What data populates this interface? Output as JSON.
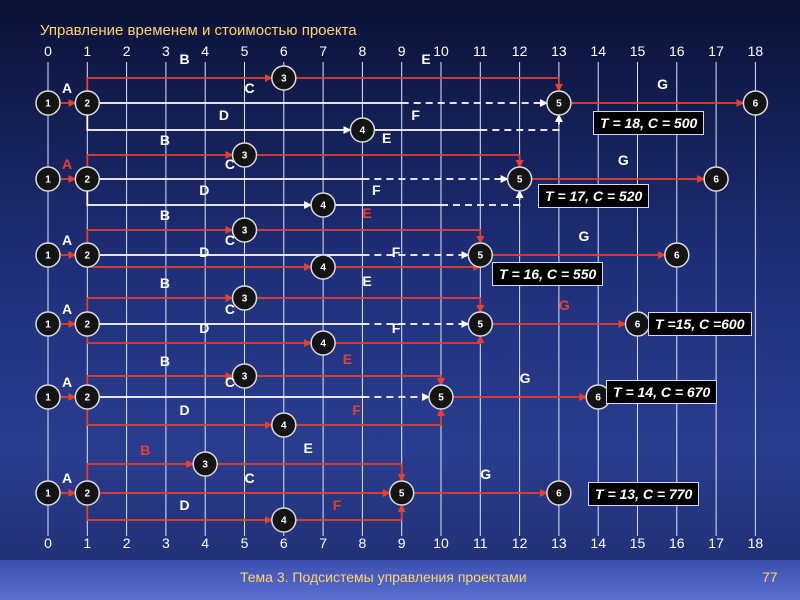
{
  "title": "Управление временем и стоимостью проекта",
  "footer": {
    "text": "Тема 3. Подсистемы управления проектами",
    "page": "77"
  },
  "axis_ticks": [
    "0",
    "1",
    "2",
    "3",
    "4",
    "5",
    "6",
    "7",
    "8",
    "9",
    "10",
    "11",
    "12",
    "13",
    "14",
    "15",
    "16",
    "17",
    "18"
  ],
  "colors": {
    "red": "#e8402a",
    "white": "#ffffff",
    "label": "#ffffff",
    "label_red": "#e8402a",
    "node": "#141414"
  },
  "nodes": [
    "1",
    "2",
    "3",
    "4",
    "5",
    "6"
  ],
  "activities": [
    "A",
    "B",
    "C",
    "D",
    "E",
    "F",
    "G"
  ],
  "networks": [
    {
      "result": "T = 18,   C = 500",
      "node_times": {
        "1": 0,
        "2": 1,
        "3": 6,
        "4": 8,
        "5": 13,
        "6": 18
      },
      "activities": [
        {
          "id": "A",
          "from": "1",
          "to": "2",
          "start": 0,
          "end": 1,
          "color": "red",
          "label_color": "white"
        },
        {
          "id": "B",
          "from": "2",
          "to": "3",
          "start": 1,
          "end": 6,
          "color": "red",
          "label_color": "white"
        },
        {
          "id": "C",
          "from": "2",
          "to": "5",
          "start": 1,
          "end": 9,
          "color": "white",
          "label_color": "white"
        },
        {
          "id": "D",
          "from": "2",
          "to": "4",
          "start": 1,
          "end": 8,
          "color": "white",
          "label_color": "white"
        },
        {
          "id": "E",
          "from": "3",
          "to": "5",
          "start": 6,
          "end": 13,
          "color": "red",
          "label_color": "white"
        },
        {
          "id": "F",
          "from": "4",
          "to": "5",
          "start": 8,
          "end": 11,
          "color": "white",
          "label_color": "white"
        },
        {
          "id": "G",
          "from": "5",
          "to": "6",
          "start": 13,
          "end": 18,
          "color": "red",
          "label_color": "white"
        }
      ]
    },
    {
      "result": "T = 17,   C = 520",
      "node_times": {
        "1": 0,
        "2": 1,
        "3": 5,
        "4": 7,
        "5": 12,
        "6": 17
      },
      "activities": [
        {
          "id": "A",
          "from": "1",
          "to": "2",
          "start": 0,
          "end": 1,
          "color": "red",
          "label_color": "red"
        },
        {
          "id": "B",
          "from": "2",
          "to": "3",
          "start": 1,
          "end": 5,
          "color": "red",
          "label_color": "white"
        },
        {
          "id": "C",
          "from": "2",
          "to": "5",
          "start": 1,
          "end": 8,
          "color": "white",
          "label_color": "white"
        },
        {
          "id": "D",
          "from": "2",
          "to": "4",
          "start": 1,
          "end": 7,
          "color": "white",
          "label_color": "white"
        },
        {
          "id": "E",
          "from": "3",
          "to": "5",
          "start": 5,
          "end": 12,
          "color": "red",
          "label_color": "white"
        },
        {
          "id": "F",
          "from": "4",
          "to": "5",
          "start": 7,
          "end": 10,
          "color": "white",
          "label_color": "white"
        },
        {
          "id": "G",
          "from": "5",
          "to": "6",
          "start": 12,
          "end": 17,
          "color": "red",
          "label_color": "white"
        }
      ]
    },
    {
      "result": "T = 16,   C = 550",
      "node_times": {
        "1": 0,
        "2": 1,
        "3": 5,
        "4": 7,
        "5": 11,
        "6": 16
      },
      "activities": [
        {
          "id": "A",
          "from": "1",
          "to": "2",
          "start": 0,
          "end": 1,
          "color": "red",
          "label_color": "white"
        },
        {
          "id": "B",
          "from": "2",
          "to": "3",
          "start": 1,
          "end": 5,
          "color": "red",
          "label_color": "white"
        },
        {
          "id": "C",
          "from": "2",
          "to": "5",
          "start": 1,
          "end": 8,
          "color": "white",
          "label_color": "white"
        },
        {
          "id": "D",
          "from": "2",
          "to": "4",
          "start": 1,
          "end": 7,
          "color": "red",
          "label_color": "white"
        },
        {
          "id": "E",
          "from": "3",
          "to": "5",
          "start": 5,
          "end": 11,
          "color": "red",
          "label_color": "red"
        },
        {
          "id": "F",
          "from": "4",
          "to": "5",
          "start": 7,
          "end": 11,
          "color": "red",
          "label_color": "white"
        },
        {
          "id": "G",
          "from": "5",
          "to": "6",
          "start": 11,
          "end": 16,
          "color": "red",
          "label_color": "white"
        }
      ]
    },
    {
      "result": "T =15,  C =600",
      "node_times": {
        "1": 0,
        "2": 1,
        "3": 5,
        "4": 7,
        "5": 11,
        "6": 15
      },
      "activities": [
        {
          "id": "A",
          "from": "1",
          "to": "2",
          "start": 0,
          "end": 1,
          "color": "red",
          "label_color": "white"
        },
        {
          "id": "B",
          "from": "2",
          "to": "3",
          "start": 1,
          "end": 5,
          "color": "red",
          "label_color": "white"
        },
        {
          "id": "C",
          "from": "2",
          "to": "5",
          "start": 1,
          "end": 8,
          "color": "white",
          "label_color": "white"
        },
        {
          "id": "D",
          "from": "2",
          "to": "4",
          "start": 1,
          "end": 7,
          "color": "red",
          "label_color": "white"
        },
        {
          "id": "E",
          "from": "3",
          "to": "5",
          "start": 5,
          "end": 11,
          "color": "red",
          "label_color": "white"
        },
        {
          "id": "F",
          "from": "4",
          "to": "5",
          "start": 7,
          "end": 11,
          "color": "red",
          "label_color": "white"
        },
        {
          "id": "G",
          "from": "5",
          "to": "6",
          "start": 11,
          "end": 15,
          "color": "red",
          "label_color": "red"
        }
      ]
    },
    {
      "result": "T = 14,   C = 670",
      "node_times": {
        "1": 0,
        "2": 1,
        "3": 5,
        "4": 6,
        "5": 10,
        "6": 14
      },
      "activities": [
        {
          "id": "A",
          "from": "1",
          "to": "2",
          "start": 0,
          "end": 1,
          "color": "red",
          "label_color": "white"
        },
        {
          "id": "B",
          "from": "2",
          "to": "3",
          "start": 1,
          "end": 5,
          "color": "red",
          "label_color": "white"
        },
        {
          "id": "C",
          "from": "2",
          "to": "5",
          "start": 1,
          "end": 8,
          "color": "white",
          "label_color": "white"
        },
        {
          "id": "D",
          "from": "2",
          "to": "4",
          "start": 1,
          "end": 6,
          "color": "red",
          "label_color": "white"
        },
        {
          "id": "E",
          "from": "3",
          "to": "5",
          "start": 5,
          "end": 10,
          "color": "red",
          "label_color": "red"
        },
        {
          "id": "F",
          "from": "4",
          "to": "5",
          "start": 6,
          "end": 10,
          "color": "red",
          "label_color": "red"
        },
        {
          "id": "G",
          "from": "5",
          "to": "6",
          "start": 10,
          "end": 14,
          "color": "red",
          "label_color": "white"
        }
      ]
    },
    {
      "result": "T = 13,   C = 770",
      "node_times": {
        "1": 0,
        "2": 1,
        "3": 4,
        "4": 6,
        "5": 9,
        "6": 13
      },
      "activities": [
        {
          "id": "A",
          "from": "1",
          "to": "2",
          "start": 0,
          "end": 1,
          "color": "red",
          "label_color": "white"
        },
        {
          "id": "B",
          "from": "2",
          "to": "3",
          "start": 1,
          "end": 4,
          "color": "red",
          "label_color": "red"
        },
        {
          "id": "C",
          "from": "2",
          "to": "5",
          "start": 1,
          "end": 9,
          "color": "red",
          "label_color": "white"
        },
        {
          "id": "D",
          "from": "2",
          "to": "4",
          "start": 1,
          "end": 6,
          "color": "red",
          "label_color": "white"
        },
        {
          "id": "E",
          "from": "3",
          "to": "5",
          "start": 4,
          "end": 9,
          "color": "red",
          "label_color": "white"
        },
        {
          "id": "F",
          "from": "4",
          "to": "5",
          "start": 6,
          "end": 9,
          "color": "red",
          "label_color": "red"
        },
        {
          "id": "G",
          "from": "5",
          "to": "6",
          "start": 9,
          "end": 13,
          "color": "red",
          "label_color": "white"
        }
      ]
    }
  ]
}
